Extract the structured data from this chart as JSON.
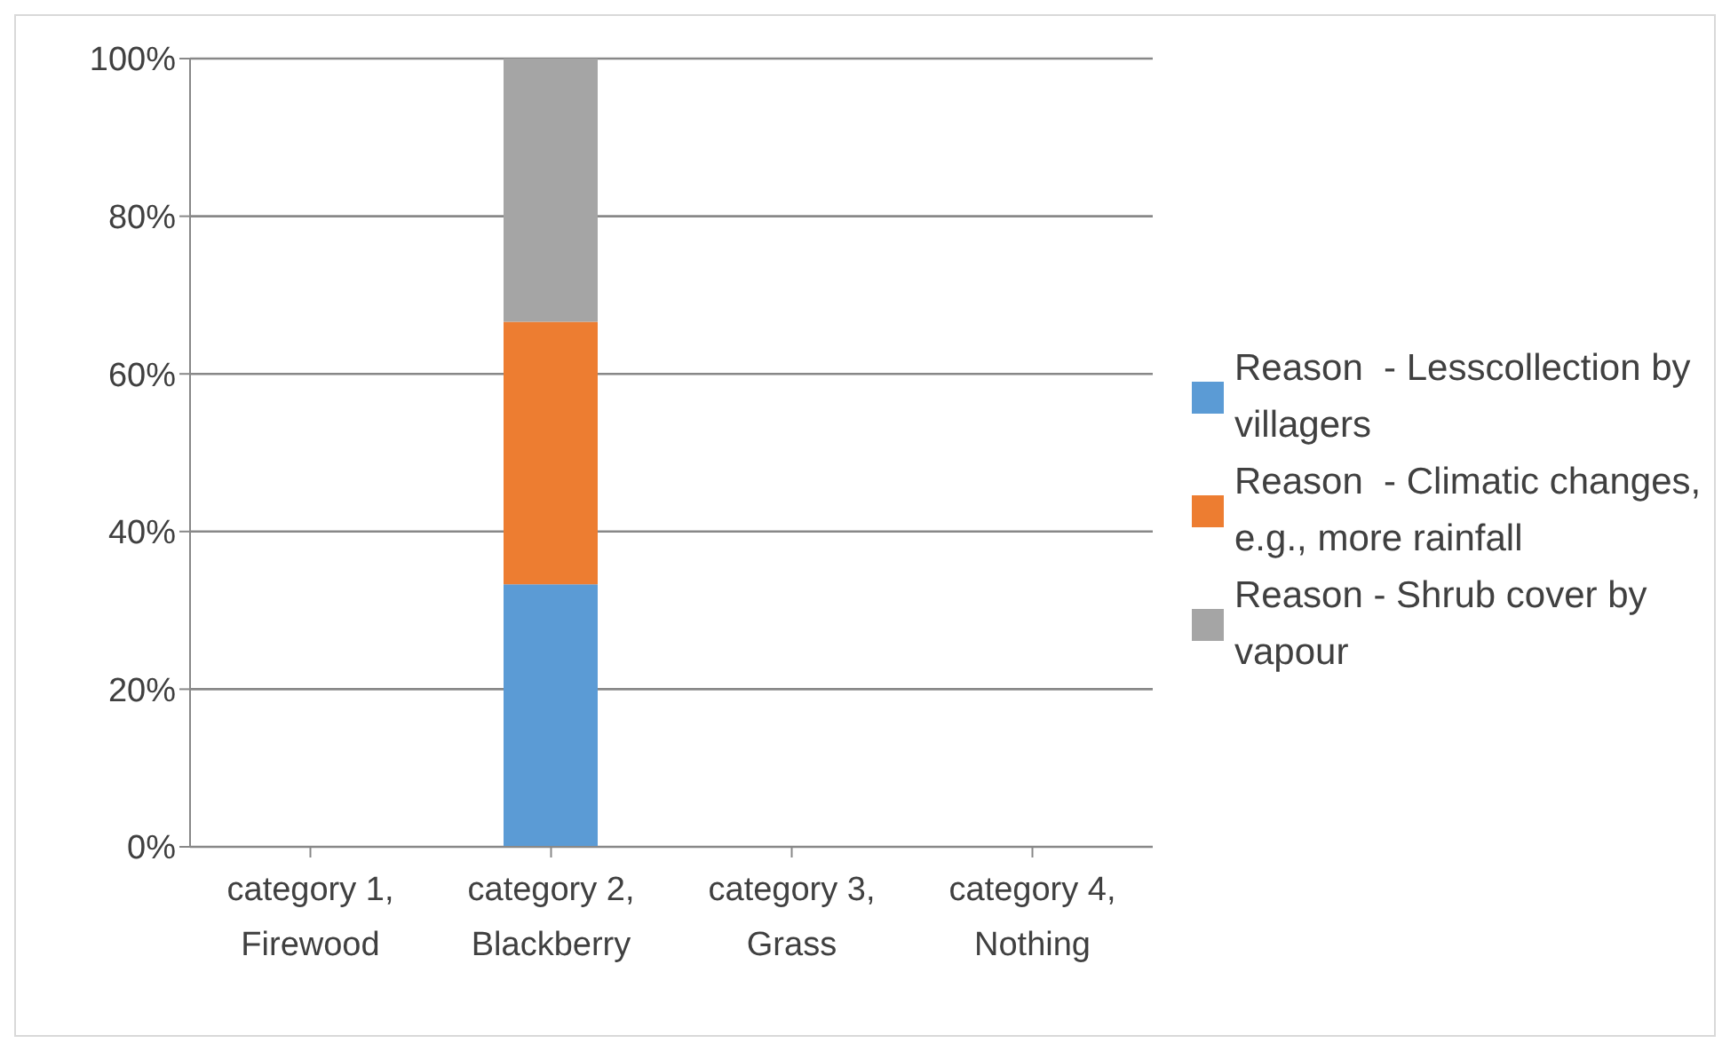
{
  "chart_data": {
    "type": "bar",
    "stacked": true,
    "categories": [
      "category 1, Firewood",
      "category 2, Blackberry",
      "category 3, Grass",
      "category 4, Nothing"
    ],
    "series": [
      {
        "name": "Reason  - Lesscollection by villagers",
        "color": "#5b9bd5",
        "values": [
          null,
          33.3,
          null,
          null
        ]
      },
      {
        "name": "Reason  - Climatic changes, e.g., more rainfall",
        "color": "#ed7d31",
        "values": [
          null,
          33.3,
          null,
          null
        ]
      },
      {
        "name": "Reason - Shrub cover by vapour",
        "color": "#a5a5a5",
        "values": [
          null,
          33.4,
          null,
          null
        ]
      }
    ],
    "ylim": [
      0,
      100
    ],
    "yticks": [
      {
        "value": 0,
        "label": "0%"
      },
      {
        "value": 20,
        "label": "20%"
      },
      {
        "value": 40,
        "label": "40%"
      },
      {
        "value": 60,
        "label": "60%"
      },
      {
        "value": 80,
        "label": "80%"
      },
      {
        "value": 100,
        "label": "100%"
      }
    ],
    "grid": "y",
    "legend": "right"
  }
}
